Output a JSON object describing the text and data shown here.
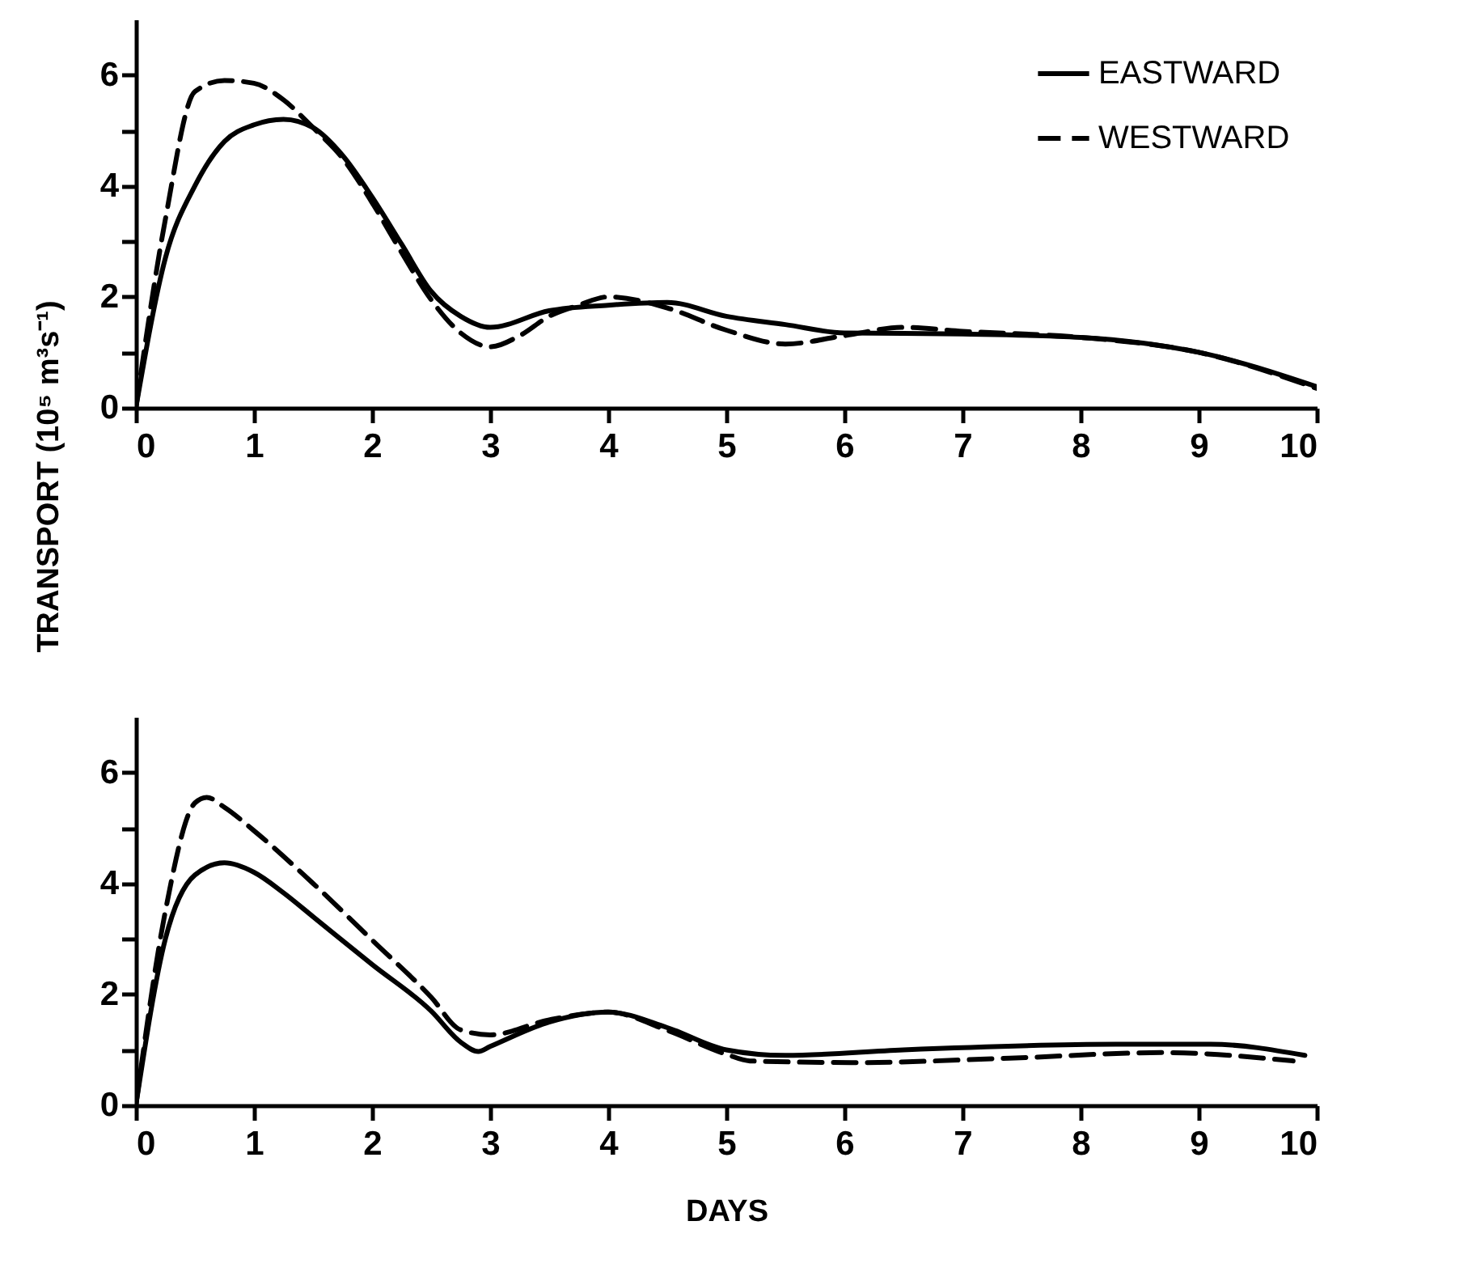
{
  "chart_data": [
    {
      "type": "line",
      "ylabel": "TRANSPORT (10⁵ m³s⁻¹)",
      "xlim": [
        0,
        10
      ],
      "xticks": [
        0,
        1,
        2,
        3,
        4,
        5,
        6,
        7,
        8,
        9,
        10
      ],
      "ylim": [
        0,
        7
      ],
      "yticks": [
        0,
        {
          "value": 1,
          "label": null
        },
        2,
        {
          "value": 3,
          "label": null
        },
        4,
        {
          "value": 5,
          "label": null
        },
        6
      ],
      "legend": "top right",
      "grid": false,
      "marker": "none",
      "series": [
        {
          "name": "EASTWARD",
          "color": "#000000",
          "line_style": "solid",
          "x": [
            0,
            0.25,
            0.5,
            0.75,
            1,
            1.25,
            1.5,
            1.75,
            2,
            2.25,
            2.5,
            2.75,
            3,
            3.5,
            4,
            4.5,
            5,
            5.5,
            6,
            7,
            8,
            9,
            10
          ],
          "values": [
            0,
            2.7,
            4.0,
            4.8,
            5.1,
            5.2,
            5.05,
            4.55,
            3.8,
            2.95,
            2.1,
            1.65,
            1.45,
            1.75,
            1.85,
            1.9,
            1.65,
            1.5,
            1.35,
            1.33,
            1.27,
            1.0,
            0.38
          ]
        },
        {
          "name": "WESTWARD",
          "color": "#000000",
          "line_style": "dashed",
          "x": [
            0,
            0.25,
            0.5,
            0.75,
            1,
            1.25,
            1.5,
            1.75,
            2,
            2.25,
            2.5,
            2.75,
            3,
            3.25,
            3.5,
            3.75,
            4,
            4.5,
            5,
            5.5,
            6,
            6.5,
            7,
            8,
            9,
            10
          ],
          "values": [
            0,
            3.4,
            5.7,
            5.9,
            5.85,
            5.55,
            5.05,
            4.5,
            3.7,
            2.8,
            1.95,
            1.35,
            1.1,
            1.3,
            1.65,
            1.85,
            2.0,
            1.8,
            1.4,
            1.15,
            1.3,
            1.45,
            1.38,
            1.27,
            1.0,
            0.35
          ]
        }
      ]
    },
    {
      "type": "line",
      "xlabel": "DAYS",
      "xlim": [
        0,
        10
      ],
      "xticks": [
        0,
        1,
        2,
        3,
        4,
        5,
        6,
        7,
        8,
        9,
        10
      ],
      "ylim": [
        0,
        7
      ],
      "yticks": [
        0,
        {
          "value": 1,
          "label": null
        },
        2,
        {
          "value": 3,
          "label": null
        },
        4,
        {
          "value": 5,
          "label": null
        },
        6
      ],
      "grid": false,
      "marker": "none",
      "series": [
        {
          "color": "#000000",
          "line_style": "solid",
          "x": [
            0,
            0.25,
            0.5,
            0.75,
            1,
            1.25,
            1.5,
            2,
            2.5,
            2.75,
            2.9,
            3,
            3.5,
            4,
            4.5,
            5,
            5.5,
            6.5,
            8.3,
            9.1,
            9.9
          ],
          "values": [
            0,
            3.0,
            4.15,
            4.37,
            4.2,
            3.83,
            3.4,
            2.54,
            1.7,
            1.14,
            0.97,
            1.06,
            1.5,
            1.68,
            1.4,
            1.0,
            0.9,
            1.0,
            1.1,
            1.1,
            0.9
          ]
        },
        {
          "color": "#000000",
          "line_style": "dashed",
          "x": [
            0,
            0.25,
            0.5,
            0.6,
            0.75,
            1,
            1.5,
            2,
            2.5,
            2.75,
            3,
            3.5,
            4,
            4.5,
            5,
            5.2,
            6.1,
            7.4,
            8.7,
            9.8
          ],
          "values": [
            0,
            3.5,
            5.45,
            5.55,
            5.37,
            4.95,
            4.0,
            2.98,
            1.95,
            1.36,
            1.27,
            1.54,
            1.68,
            1.35,
            0.92,
            0.8,
            0.77,
            0.85,
            0.95,
            0.8
          ]
        }
      ]
    }
  ]
}
